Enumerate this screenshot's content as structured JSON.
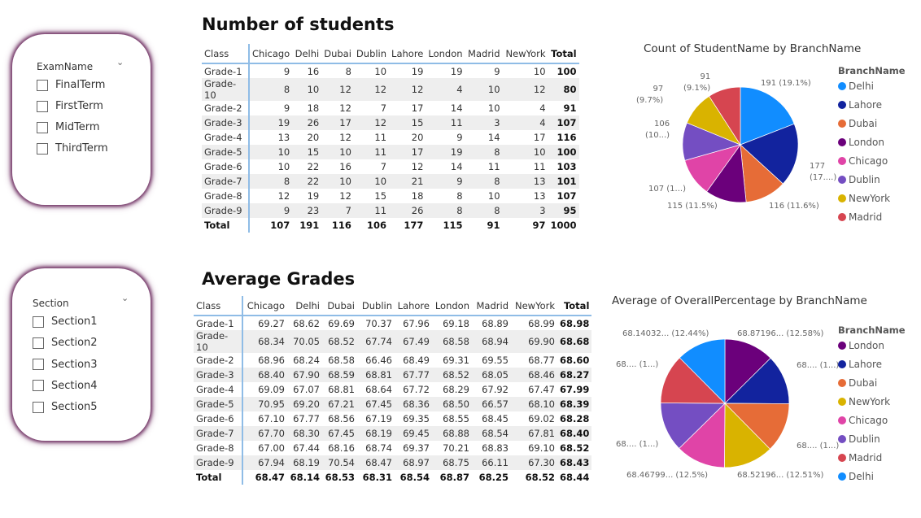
{
  "colors": {
    "Delhi": "#118DFF",
    "Lahore": "#12239E",
    "Dubai": "#E66C37",
    "London": "#6B007B",
    "Chicago": "#E044A7",
    "Dublin": "#744EC2",
    "NewYork": "#D9B300",
    "Madrid": "#D64550",
    "accent_border": "#6b2a5e"
  },
  "slicers": [
    {
      "header": "ExamName",
      "icon": "chevron-down-icon",
      "items": [
        "FinalTerm",
        "FirstTerm",
        "MidTerm",
        "ThirdTerm"
      ]
    },
    {
      "header": "Section",
      "icon": "chevron-down-icon",
      "items": [
        "Section1",
        "Section2",
        "Section3",
        "Section4",
        "Section5"
      ]
    }
  ],
  "tables": [
    {
      "title": "Number of students",
      "columns": [
        "Class",
        "Chicago",
        "Delhi",
        "Dubai",
        "Dublin",
        "Lahore",
        "London",
        "Madrid",
        "NewYork",
        "Total"
      ],
      "rows": [
        [
          "Grade-1",
          "9",
          "16",
          "8",
          "10",
          "19",
          "19",
          "9",
          "10",
          "100"
        ],
        [
          "Grade-10",
          "8",
          "10",
          "12",
          "12",
          "12",
          "4",
          "10",
          "12",
          "80"
        ],
        [
          "Grade-2",
          "9",
          "18",
          "12",
          "7",
          "17",
          "14",
          "10",
          "4",
          "91"
        ],
        [
          "Grade-3",
          "19",
          "26",
          "17",
          "12",
          "15",
          "11",
          "3",
          "4",
          "107"
        ],
        [
          "Grade-4",
          "13",
          "20",
          "12",
          "11",
          "20",
          "9",
          "14",
          "17",
          "116"
        ],
        [
          "Grade-5",
          "10",
          "15",
          "10",
          "11",
          "17",
          "19",
          "8",
          "10",
          "100"
        ],
        [
          "Grade-6",
          "10",
          "22",
          "16",
          "7",
          "12",
          "14",
          "11",
          "11",
          "103"
        ],
        [
          "Grade-7",
          "8",
          "22",
          "10",
          "10",
          "21",
          "9",
          "8",
          "13",
          "101"
        ],
        [
          "Grade-8",
          "12",
          "19",
          "12",
          "15",
          "18",
          "8",
          "10",
          "13",
          "107"
        ],
        [
          "Grade-9",
          "9",
          "23",
          "7",
          "11",
          "26",
          "8",
          "8",
          "3",
          "95"
        ]
      ],
      "total": [
        "Total",
        "107",
        "191",
        "116",
        "106",
        "177",
        "115",
        "91",
        "97",
        "1000"
      ]
    },
    {
      "title": "Average Grades",
      "columns": [
        "Class",
        "Chicago",
        "Delhi",
        "Dubai",
        "Dublin",
        "Lahore",
        "London",
        "Madrid",
        "NewYork",
        "Total"
      ],
      "rows": [
        [
          "Grade-1",
          "69.27",
          "68.62",
          "69.69",
          "70.37",
          "67.96",
          "69.18",
          "68.89",
          "68.99",
          "68.98"
        ],
        [
          "Grade-10",
          "68.34",
          "70.05",
          "68.52",
          "67.74",
          "67.49",
          "68.58",
          "68.94",
          "69.90",
          "68.68"
        ],
        [
          "Grade-2",
          "68.96",
          "68.24",
          "68.58",
          "66.46",
          "68.49",
          "69.31",
          "69.55",
          "68.77",
          "68.60"
        ],
        [
          "Grade-3",
          "68.40",
          "67.90",
          "68.59",
          "68.81",
          "67.77",
          "68.52",
          "68.05",
          "68.46",
          "68.27"
        ],
        [
          "Grade-4",
          "69.09",
          "67.07",
          "68.81",
          "68.64",
          "67.72",
          "68.29",
          "67.92",
          "67.47",
          "67.99"
        ],
        [
          "Grade-5",
          "70.95",
          "69.20",
          "67.21",
          "67.45",
          "68.36",
          "68.50",
          "66.57",
          "68.10",
          "68.39"
        ],
        [
          "Grade-6",
          "67.10",
          "67.77",
          "68.56",
          "67.19",
          "69.35",
          "68.55",
          "68.45",
          "69.02",
          "68.28"
        ],
        [
          "Grade-7",
          "67.70",
          "68.30",
          "67.45",
          "68.19",
          "69.45",
          "68.88",
          "68.54",
          "67.81",
          "68.40"
        ],
        [
          "Grade-8",
          "67.00",
          "67.44",
          "68.16",
          "68.74",
          "69.37",
          "70.21",
          "68.83",
          "69.10",
          "68.52"
        ],
        [
          "Grade-9",
          "67.94",
          "68.19",
          "70.54",
          "68.47",
          "68.97",
          "68.75",
          "66.11",
          "67.30",
          "68.43"
        ]
      ],
      "total": [
        "Total",
        "68.47",
        "68.14",
        "68.53",
        "68.31",
        "68.54",
        "68.87",
        "68.25",
        "68.52",
        "68.44"
      ]
    }
  ],
  "chart_data": [
    {
      "type": "pie",
      "title": "Count of StudentName by BranchName",
      "legend_title": "BranchName",
      "legend_position": "right",
      "categories": [
        "Delhi",
        "Lahore",
        "Dubai",
        "London",
        "Chicago",
        "Dublin",
        "NewYork",
        "Madrid"
      ],
      "values": [
        191,
        177,
        116,
        115,
        107,
        106,
        97,
        91
      ],
      "labels": [
        "191 (19.1%)",
        "177\n(17....)",
        "116 (11.6%)",
        "115 (11.5%)",
        "107 (1...)",
        "106\n(10...)",
        "97\n(9.7%)",
        "91\n(9.1%)"
      ]
    },
    {
      "type": "pie",
      "title": "Average of OverallPercentage by BranchName",
      "legend_title": "BranchName",
      "legend_position": "right",
      "categories": [
        "London",
        "Lahore",
        "Dubai",
        "NewYork",
        "Chicago",
        "Dublin",
        "Madrid",
        "Delhi"
      ],
      "values": [
        68.87,
        68.54,
        68.53,
        68.52,
        68.47,
        68.31,
        68.25,
        68.14
      ],
      "labels": [
        "68.87196... (12.58%)",
        "68.... (1...)",
        "68.... (1...)",
        "68.52196... (12.51%)",
        "68.46799... (12.5%)",
        "68.... (1...)",
        "68.... (1...)",
        "68.14032... (12.44%)"
      ]
    }
  ]
}
